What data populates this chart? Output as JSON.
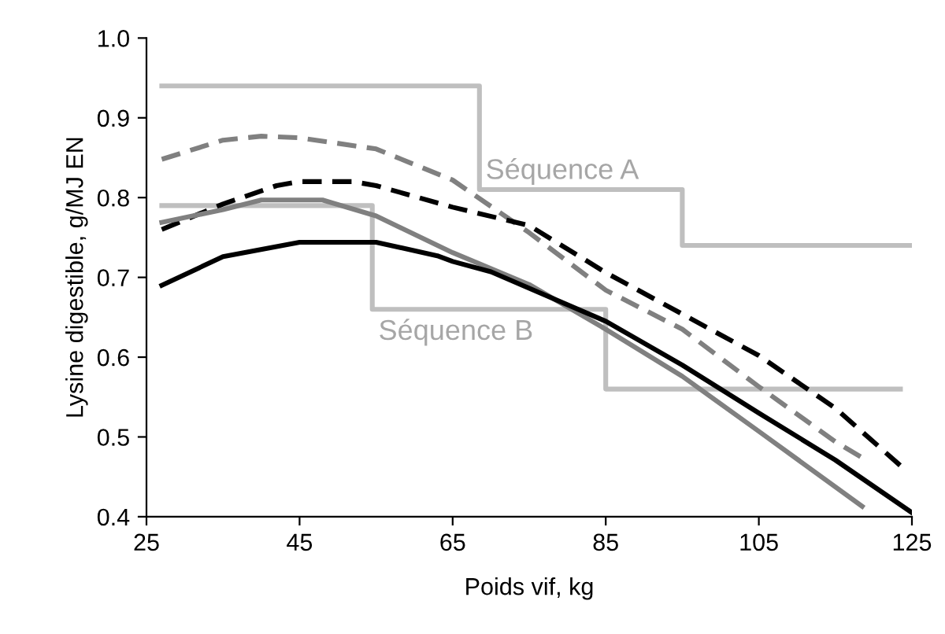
{
  "chart_data": {
    "type": "line",
    "xlabel": "Poids vif, kg",
    "ylabel": "Lysine digestible, g/MJ EN",
    "xlim": [
      25,
      125
    ],
    "xticks": [
      25,
      45,
      65,
      85,
      105,
      125
    ],
    "ylim": [
      0.4,
      1.0
    ],
    "yticks": [
      0.4,
      0.5,
      0.6,
      0.7,
      0.8,
      0.9,
      {
        "value": 1.0,
        "label": "1.0"
      }
    ],
    "grid": false,
    "marker": "none",
    "series": [
      {
        "type": "step",
        "name": "Séquence A",
        "color": "#bfbfbf",
        "line_style": "solid",
        "x": [
          27,
          68.5,
          95,
          125
        ],
        "values": [
          0.94,
          0.81,
          0.74,
          0.74
        ]
      },
      {
        "type": "step",
        "name": "Séquence B",
        "color": "#bfbfbf",
        "line_style": "solid",
        "x": [
          27,
          54.5,
          85,
          123.5
        ],
        "values": [
          0.79,
          0.66,
          0.56,
          0.56
        ]
      },
      {
        "color": "#808080",
        "line_style": "dashed",
        "x": [
          27,
          35,
          40,
          45,
          55,
          65,
          75,
          85,
          95,
          105,
          115,
          119
        ],
        "values": [
          0.848,
          0.872,
          0.877,
          0.875,
          0.861,
          0.822,
          0.756,
          0.684,
          0.635,
          0.563,
          0.494,
          0.471
        ]
      },
      {
        "color": "#000000",
        "line_style": "dashed",
        "x": [
          27,
          35,
          42,
          45,
          52,
          55,
          65,
          75,
          85,
          95,
          105,
          115,
          123.5
        ],
        "values": [
          0.76,
          0.792,
          0.815,
          0.82,
          0.82,
          0.815,
          0.788,
          0.765,
          0.706,
          0.654,
          0.602,
          0.536,
          0.464
        ]
      },
      {
        "color": "#808080",
        "line_style": "solid",
        "x": [
          27,
          35,
          40,
          48,
          55,
          65,
          75,
          85,
          95,
          105,
          118.5
        ],
        "values": [
          0.769,
          0.785,
          0.797,
          0.797,
          0.777,
          0.731,
          0.691,
          0.635,
          0.576,
          0.507,
          0.413
        ]
      },
      {
        "color": "#000000",
        "line_style": "solid",
        "x": [
          27,
          35,
          45,
          55,
          63,
          65,
          70,
          85,
          95,
          105,
          115,
          125
        ],
        "values": [
          0.69,
          0.726,
          0.744,
          0.744,
          0.727,
          0.72,
          0.707,
          0.645,
          0.59,
          0.53,
          0.471,
          0.405
        ]
      }
    ]
  }
}
